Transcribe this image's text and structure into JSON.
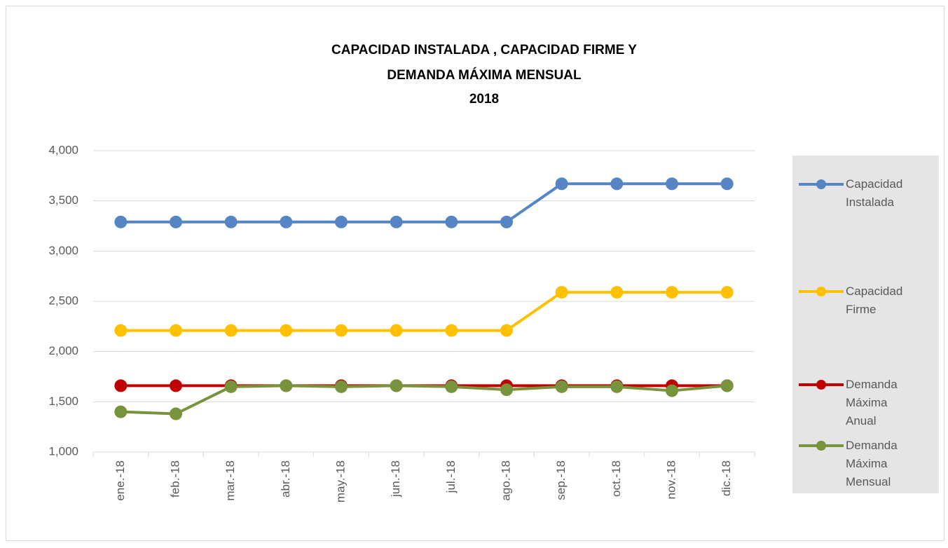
{
  "chart_data": {
    "type": "line",
    "title": [
      "CAPACIDAD  INSTALADA , CAPACIDAD  FIRME  Y",
      "DEMANDA  MÁXIMA  MENSUAL",
      "2018"
    ],
    "categories": [
      "ene.-18",
      "feb.-18",
      "mar.-18",
      "abr.-18",
      "may.-18",
      "jun.-18",
      "jul.-18",
      "ago.-18",
      "sep.-18",
      "oct.-18",
      "nov.-18",
      "dic.-18"
    ],
    "series": [
      {
        "name": "Capacidad Instalada",
        "color": "#5585c5",
        "values": [
          3290,
          3290,
          3290,
          3290,
          3290,
          3290,
          3290,
          3290,
          3670,
          3670,
          3670,
          3670
        ]
      },
      {
        "name": "Capacidad Firme",
        "color": "#ffc000",
        "values": [
          2210,
          2210,
          2210,
          2210,
          2210,
          2210,
          2210,
          2210,
          2590,
          2590,
          2590,
          2590
        ]
      },
      {
        "name": "Demanda Máxima Anual",
        "color": "#c00000",
        "values": [
          1660,
          1660,
          1660,
          1660,
          1660,
          1660,
          1660,
          1660,
          1660,
          1660,
          1660,
          1660
        ]
      },
      {
        "name": "Demanda Máxima Mensual",
        "color": "#77933c",
        "values": [
          1400,
          1380,
          1650,
          1660,
          1650,
          1660,
          1650,
          1620,
          1650,
          1650,
          1610,
          1660
        ]
      }
    ],
    "ylim": [
      1000,
      4000
    ],
    "yticks": [
      {
        "value": 1000,
        "label": "1,000"
      },
      {
        "value": 1500,
        "label": "1,500"
      },
      {
        "value": 2000,
        "label": "2,000"
      },
      {
        "value": 2500,
        "label": "2,500"
      },
      {
        "value": 3000,
        "label": "3,000"
      },
      {
        "value": 3500,
        "label": "3,500"
      },
      {
        "value": 4000,
        "label": "4,000"
      }
    ],
    "grid": true,
    "legend": "right"
  }
}
